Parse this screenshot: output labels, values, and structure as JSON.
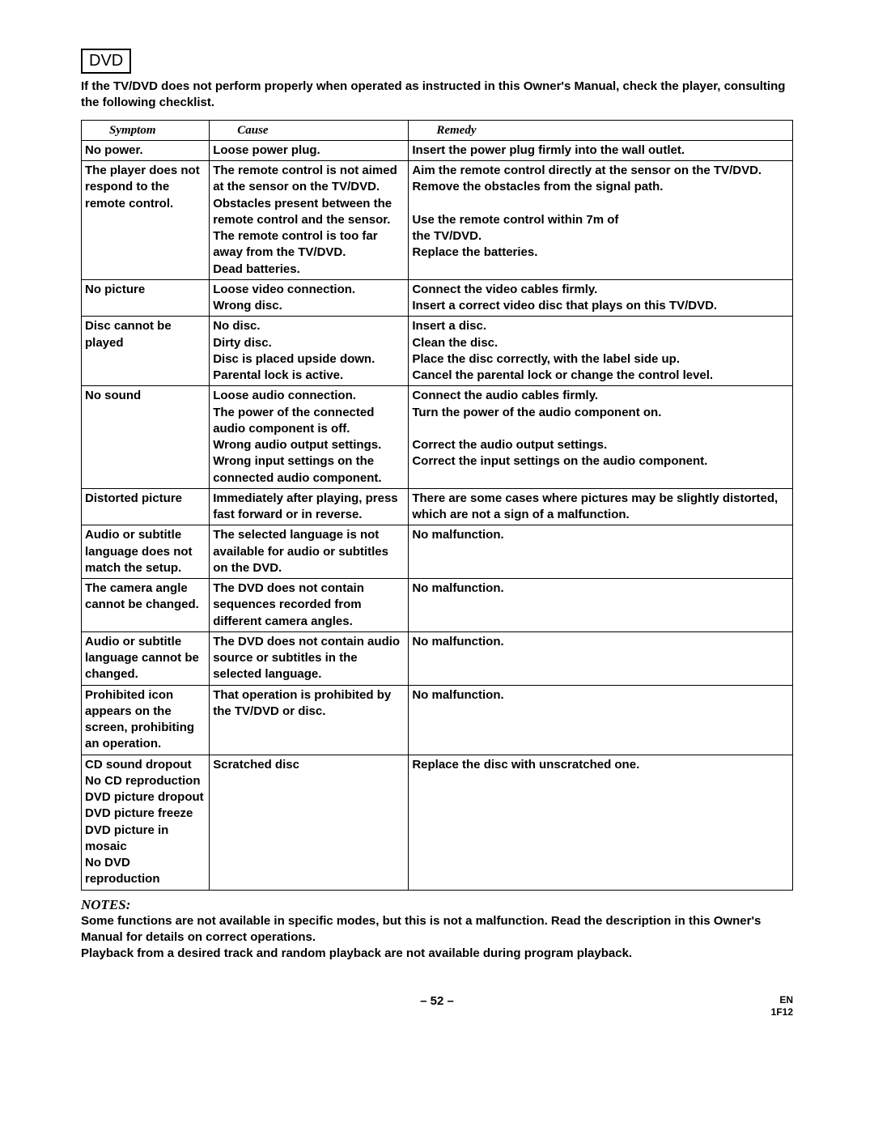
{
  "header": {
    "dvd_label": "DVD",
    "intro": "If the TV/DVD does not perform properly when operated as instructed in this Owner's Manual, check the player, consulting the following checklist."
  },
  "table": {
    "columns": [
      "Symptom",
      "Cause",
      "Remedy"
    ],
    "rows": [
      {
        "symptom": "No power.",
        "cause": "Loose power plug.",
        "remedy": "Insert the power plug firmly into the wall outlet."
      },
      {
        "symptom": "The player does not respond to the remote control.",
        "cause": "The remote control is not aimed at the sensor on the TV/DVD.\nObstacles present between the remote control and the sensor.\nThe remote control is too far away from the TV/DVD.\nDead batteries.",
        "remedy": "Aim the remote control directly at the sensor on the TV/DVD.\nRemove the obstacles from the signal path.\n\nUse the remote control within 7m of\nthe TV/DVD.\nReplace the batteries."
      },
      {
        "symptom": "No picture",
        "cause": "Loose video connection.\nWrong disc.",
        "remedy": "Connect the video cables firmly.\nInsert a correct video disc that plays on this TV/DVD."
      },
      {
        "symptom": "Disc cannot be played",
        "cause": "No disc.\nDirty disc.\nDisc is placed upside down.\nParental lock is active.",
        "remedy": "Insert a disc.\nClean the disc.\nPlace the disc correctly, with the label side up.\nCancel the parental lock or change the control level."
      },
      {
        "symptom": "No sound",
        "cause": "Loose audio connection.\nThe power of the connected audio component is off.\nWrong audio output settings.\nWrong input settings on the connected audio component.",
        "remedy": "Connect the audio cables firmly.\nTurn the power of the audio component on.\n\nCorrect the audio output settings.\nCorrect the input settings on the audio component."
      },
      {
        "symptom": "Distorted picture",
        "cause": "Immediately after playing, press fast forward or in reverse.",
        "remedy": "There are some cases where pictures may be slightly distorted, which are not a sign of a malfunction."
      },
      {
        "symptom": "Audio or subtitle language does not match the setup.",
        "cause": "The selected language is not available for audio or subtitles on the DVD.",
        "remedy": "No malfunction."
      },
      {
        "symptom": "The camera angle cannot be changed.",
        "cause": "The DVD does not contain sequences recorded from different camera angles.",
        "remedy": "No malfunction."
      },
      {
        "symptom": "Audio or subtitle language cannot be changed.",
        "cause": "The DVD does not contain audio source or subtitles in the selected language.",
        "remedy": "No malfunction."
      },
      {
        "symptom": "  Prohibited icon appears on the screen, prohibiting an operation.",
        "cause": "That operation is prohibited by the TV/DVD or disc.",
        "remedy": "No malfunction."
      },
      {
        "symptom": "CD sound dropout\nNo CD reproduction\nDVD picture dropout\nDVD picture freeze\nDVD picture in mosaic\nNo DVD reproduction",
        "cause": "Scratched disc",
        "remedy": "Replace the disc with unscratched one."
      }
    ]
  },
  "notes": {
    "heading": "NOTES:",
    "line1": "Some functions are not available in specific modes, but this is not a malfunction. Read the description in this Owner's Manual for details on correct operations.",
    "line2": "Playback from a desired track and random playback are not available during program playback."
  },
  "footer": {
    "page": "– 52 –",
    "lang": "EN",
    "code": "1F12"
  }
}
